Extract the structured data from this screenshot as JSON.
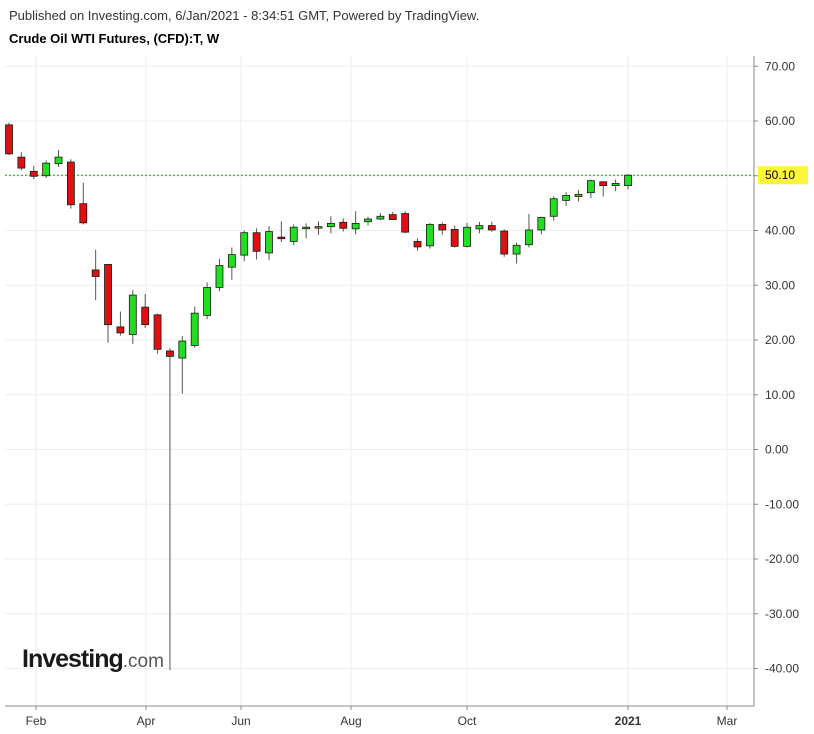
{
  "header": {
    "publisher": "Published on Investing.com, 6/Jan/2021 - 8:34:51 GMT, Powered by TradingView.",
    "title": "Crude Oil WTI Futures, (CFD):T, W"
  },
  "logo": {
    "main": "Investing",
    "suffix": ".com"
  },
  "colors": {
    "up": "#22dd22",
    "down": "#dd1111",
    "wick": "#555555",
    "grid": "#eeeeee",
    "axis": "#888888",
    "price_line": "#16a016",
    "price_label_bg": "#fff53d"
  },
  "chart_data": {
    "type": "candlestick",
    "title": "Crude Oil WTI Futures, (CFD):T, W",
    "ylim": [
      -45,
      72
    ],
    "y_ticks": [
      "70.00",
      "60.00",
      "50.00",
      "40.00",
      "30.00",
      "20.00",
      "10.00",
      "0.00",
      "-10.00",
      "-20.00",
      "-30.00",
      "-40.00"
    ],
    "x_ticks": [
      "Feb",
      "Apr",
      "Jun",
      "Aug",
      "Oct",
      "2021",
      "Mar"
    ],
    "current_price": 50.1,
    "current_price_label": "50.10",
    "grid": true,
    "candles": [
      {
        "o": 59.3,
        "h": 59.7,
        "l": 53.8,
        "c": 54.0
      },
      {
        "o": 53.4,
        "h": 54.3,
        "l": 51.0,
        "c": 51.4
      },
      {
        "o": 50.8,
        "h": 51.8,
        "l": 49.4,
        "c": 49.9
      },
      {
        "o": 50.0,
        "h": 52.8,
        "l": 49.6,
        "c": 52.3
      },
      {
        "o": 52.2,
        "h": 54.7,
        "l": 51.6,
        "c": 53.4
      },
      {
        "o": 52.5,
        "h": 53.0,
        "l": 44.0,
        "c": 44.7
      },
      {
        "o": 44.9,
        "h": 48.7,
        "l": 41.1,
        "c": 41.4
      },
      {
        "o": 32.8,
        "h": 36.5,
        "l": 27.3,
        "c": 31.6
      },
      {
        "o": 33.8,
        "h": 33.8,
        "l": 19.5,
        "c": 22.8
      },
      {
        "o": 22.4,
        "h": 25.2,
        "l": 20.8,
        "c": 21.3
      },
      {
        "o": 21.0,
        "h": 29.1,
        "l": 19.3,
        "c": 28.2
      },
      {
        "o": 26.0,
        "h": 28.4,
        "l": 22.2,
        "c": 22.8
      },
      {
        "o": 24.6,
        "h": 24.8,
        "l": 17.5,
        "c": 18.3
      },
      {
        "o": 18.0,
        "h": 18.5,
        "l": -40.3,
        "c": 17.0
      },
      {
        "o": 16.7,
        "h": 20.7,
        "l": 10.2,
        "c": 19.8
      },
      {
        "o": 19.0,
        "h": 26.1,
        "l": 18.6,
        "c": 24.9
      },
      {
        "o": 24.5,
        "h": 30.5,
        "l": 23.8,
        "c": 29.6
      },
      {
        "o": 29.6,
        "h": 34.8,
        "l": 28.9,
        "c": 33.6
      },
      {
        "o": 33.3,
        "h": 36.9,
        "l": 31.0,
        "c": 35.6
      },
      {
        "o": 35.5,
        "h": 40.0,
        "l": 34.4,
        "c": 39.6
      },
      {
        "o": 39.6,
        "h": 40.4,
        "l": 34.7,
        "c": 36.2
      },
      {
        "o": 35.9,
        "h": 40.8,
        "l": 34.6,
        "c": 39.8
      },
      {
        "o": 38.8,
        "h": 41.7,
        "l": 37.9,
        "c": 38.5
      },
      {
        "o": 38.0,
        "h": 41.1,
        "l": 37.3,
        "c": 40.6
      },
      {
        "o": 40.4,
        "h": 41.3,
        "l": 38.6,
        "c": 40.6
      },
      {
        "o": 40.6,
        "h": 41.7,
        "l": 39.2,
        "c": 40.7
      },
      {
        "o": 40.7,
        "h": 42.6,
        "l": 39.5,
        "c": 41.3
      },
      {
        "o": 41.5,
        "h": 42.2,
        "l": 39.8,
        "c": 40.4
      },
      {
        "o": 40.3,
        "h": 43.5,
        "l": 39.3,
        "c": 41.3
      },
      {
        "o": 41.6,
        "h": 42.5,
        "l": 40.9,
        "c": 42.1
      },
      {
        "o": 42.1,
        "h": 43.2,
        "l": 41.9,
        "c": 42.6
      },
      {
        "o": 42.9,
        "h": 43.4,
        "l": 42.2,
        "c": 42.0
      },
      {
        "o": 43.1,
        "h": 43.5,
        "l": 39.5,
        "c": 39.7
      },
      {
        "o": 38.0,
        "h": 38.6,
        "l": 36.3,
        "c": 37.0
      },
      {
        "o": 37.2,
        "h": 41.4,
        "l": 36.7,
        "c": 41.1
      },
      {
        "o": 41.1,
        "h": 41.5,
        "l": 39.2,
        "c": 40.1
      },
      {
        "o": 40.2,
        "h": 40.9,
        "l": 36.9,
        "c": 37.1
      },
      {
        "o": 37.1,
        "h": 41.4,
        "l": 36.9,
        "c": 40.6
      },
      {
        "o": 40.3,
        "h": 41.6,
        "l": 39.5,
        "c": 40.9
      },
      {
        "o": 40.9,
        "h": 41.6,
        "l": 39.8,
        "c": 40.1
      },
      {
        "o": 39.9,
        "h": 40.2,
        "l": 35.2,
        "c": 35.7
      },
      {
        "o": 35.7,
        "h": 37.8,
        "l": 34.0,
        "c": 37.3
      },
      {
        "o": 37.4,
        "h": 43.0,
        "l": 36.9,
        "c": 40.1
      },
      {
        "o": 40.1,
        "h": 42.5,
        "l": 39.3,
        "c": 42.4
      },
      {
        "o": 42.6,
        "h": 46.2,
        "l": 41.8,
        "c": 45.8
      },
      {
        "o": 45.5,
        "h": 47.0,
        "l": 44.5,
        "c": 46.4
      },
      {
        "o": 46.2,
        "h": 47.4,
        "l": 45.3,
        "c": 46.6
      },
      {
        "o": 46.9,
        "h": 49.3,
        "l": 45.9,
        "c": 49.1
      },
      {
        "o": 48.9,
        "h": 49.0,
        "l": 46.2,
        "c": 48.2
      },
      {
        "o": 48.2,
        "h": 49.3,
        "l": 47.2,
        "c": 48.6
      },
      {
        "o": 48.2,
        "h": 50.3,
        "l": 47.5,
        "c": 50.1
      }
    ]
  }
}
